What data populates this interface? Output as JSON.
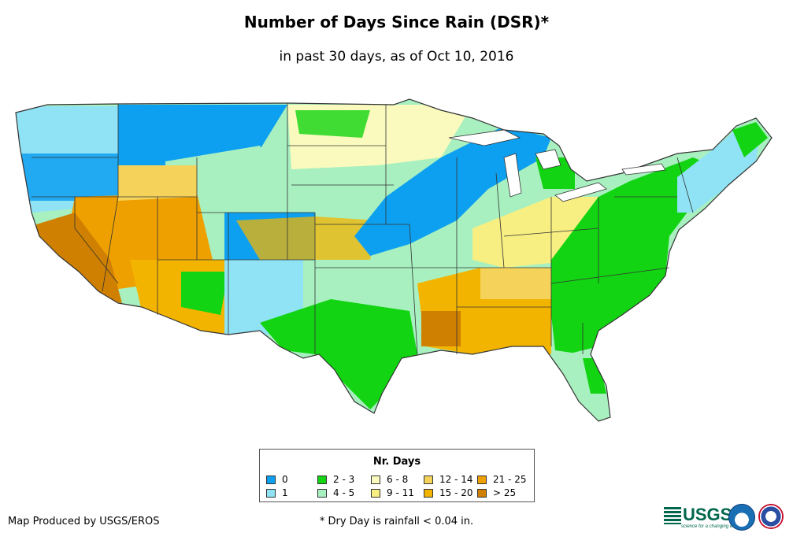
{
  "title": "Number of Days Since Rain (DSR)*",
  "subtitle": "in past 30 days, as of Oct 10, 2016",
  "legend": {
    "title": "Nr. Days",
    "items": [
      {
        "label": "0",
        "color": "#0ea0f0"
      },
      {
        "label": "1",
        "color": "#8fe3f5"
      },
      {
        "label": "2 - 3",
        "color": "#12d412"
      },
      {
        "label": "4 - 5",
        "color": "#a8f0c0"
      },
      {
        "label": "6 - 8",
        "color": "#fafabe"
      },
      {
        "label": "9 - 11",
        "color": "#f7ef82"
      },
      {
        "label": "12 - 14",
        "color": "#f5d35a"
      },
      {
        "label": "15 - 20",
        "color": "#f3b400"
      },
      {
        "label": "21 - 25",
        "color": "#eea000"
      },
      {
        "label": "> 25",
        "color": "#cf8000"
      }
    ]
  },
  "credit": "Map Produced by USGS/EROS",
  "footnote": "* Dry Day is rainfall < 0.04 in.",
  "logos": {
    "usgs": "USGS",
    "usgs_tagline": "science for a changing world",
    "noaa": "noaa-seal-icon",
    "nws": "national-weather-service-icon"
  },
  "regions": [
    {
      "name": "pacific-northwest-coast",
      "class": "1"
    },
    {
      "name": "northern-rockies",
      "class": "0"
    },
    {
      "name": "great-basin-nevada",
      "class": "21 - 25"
    },
    {
      "name": "california-central-valley",
      "class": "> 25"
    },
    {
      "name": "arizona",
      "class": "15 - 20"
    },
    {
      "name": "colorado-new-mexico",
      "class": "1"
    },
    {
      "name": "northern-plains",
      "class": "6 - 8"
    },
    {
      "name": "upper-midwest",
      "class": "0"
    },
    {
      "name": "central-plains",
      "class": "4 - 5"
    },
    {
      "name": "mid-south",
      "class": "15 - 20"
    },
    {
      "name": "gulf-coast-texas",
      "class": "2 - 3"
    },
    {
      "name": "southeast-atlantic",
      "class": "2 - 3"
    },
    {
      "name": "ohio-valley",
      "class": "9 - 11"
    },
    {
      "name": "new-england",
      "class": "1"
    },
    {
      "name": "florida",
      "class": "4 - 5"
    }
  ]
}
